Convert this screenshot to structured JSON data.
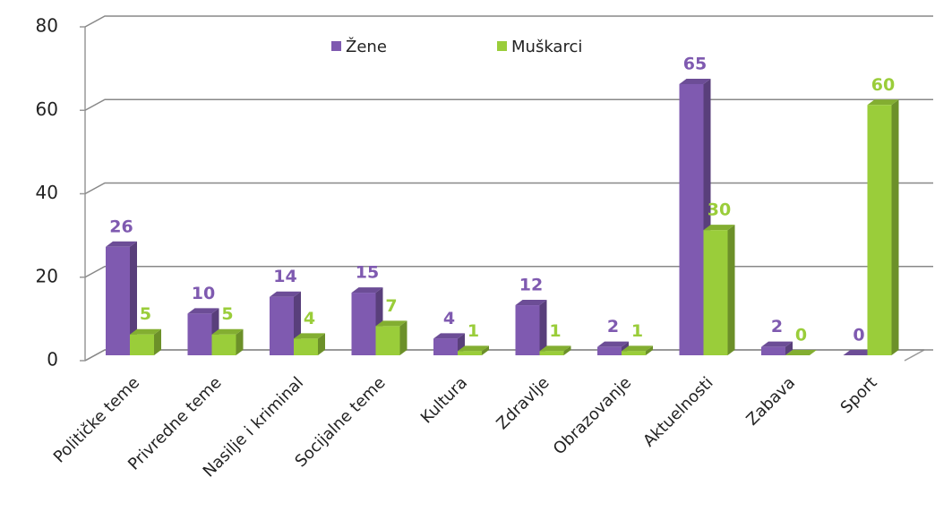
{
  "chart_data": {
    "type": "bar",
    "categories": [
      "Političke teme",
      "Privredne teme",
      "Nasilje i kriminal",
      "Socijalne teme",
      "Kultura",
      "Zdravlje",
      "Obrazovanje",
      "Aktuelnosti",
      "Zabava",
      "Sport"
    ],
    "series": [
      {
        "name": "Žene",
        "color": "#7f5ab0",
        "values": [
          26,
          10,
          14,
          15,
          4,
          12,
          2,
          65,
          2,
          0
        ]
      },
      {
        "name": "Muškarci",
        "color": "#9acd3a",
        "values": [
          5,
          5,
          4,
          7,
          1,
          1,
          1,
          30,
          0,
          60
        ]
      }
    ],
    "ylim": [
      0,
      80
    ],
    "yticks": [
      0,
      20,
      40,
      60,
      80
    ],
    "grid": true,
    "legend": "top"
  }
}
